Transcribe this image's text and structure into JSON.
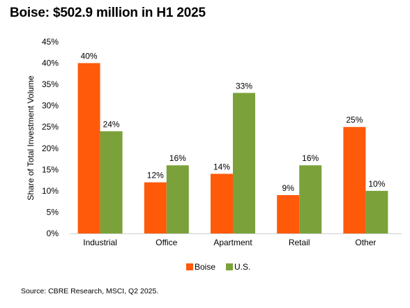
{
  "title": "Boise: $502.9 million in H1 2025",
  "source": "Source: CBRE Research, MSCI, Q2 2025.",
  "chart_data": {
    "type": "bar",
    "categories": [
      "Industrial",
      "Office",
      "Apartment",
      "Retail",
      "Other"
    ],
    "series": [
      {
        "name": "Boise",
        "values": [
          40,
          12,
          14,
          9,
          25
        ],
        "labels": [
          "40%",
          "12%",
          "14%",
          "9%",
          "25%"
        ],
        "color": "#ff5a0a"
      },
      {
        "name": "U.S.",
        "values": [
          24,
          16,
          33,
          16,
          10
        ],
        "labels": [
          "24%",
          "16%",
          "33%",
          "16%",
          "10%"
        ],
        "color": "#7ba23a"
      }
    ],
    "ylabel": "Share of Total Investment Volume",
    "xlabel": "",
    "ylim": [
      0,
      45
    ],
    "yticks": [
      0,
      5,
      10,
      15,
      20,
      25,
      30,
      35,
      40,
      45
    ],
    "yticklabels": [
      "0%",
      "5%",
      "10%",
      "15%",
      "20%",
      "25%",
      "30%",
      "35%",
      "40%",
      "45%"
    ],
    "grid": false,
    "legend_position": "bottom"
  }
}
